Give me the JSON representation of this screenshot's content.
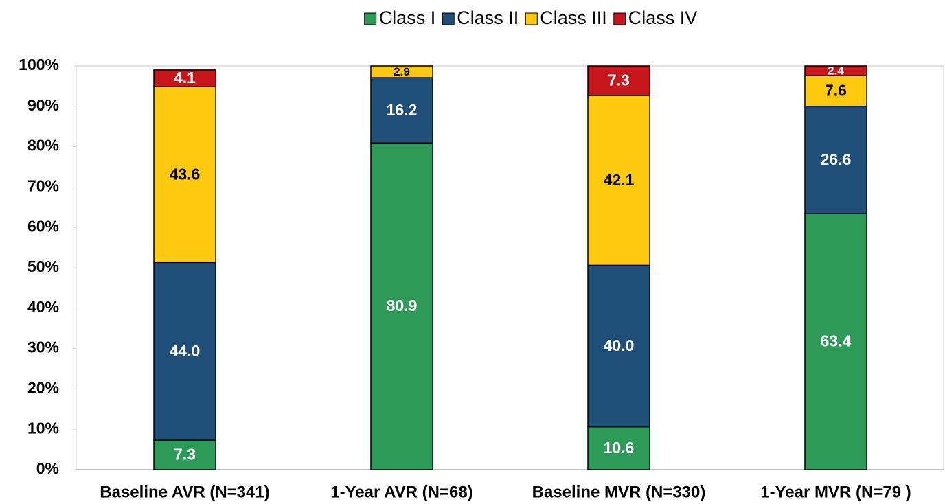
{
  "chart_data": {
    "type": "stacked_bar",
    "categories": [
      "Baseline AVR (N=341)",
      "1-Year AVR (N=68)",
      "Baseline MVR (N=330)",
      "1-Year MVR (N=79 )"
    ],
    "series": [
      {
        "name": "Class I",
        "color": "#2e9a58",
        "values": [
          7.3,
          80.9,
          10.6,
          63.4
        ],
        "value_labels": [
          "7.3",
          "80.9",
          "10.6",
          "63.4"
        ]
      },
      {
        "name": "Class II",
        "color": "#1f4e79",
        "values": [
          44.0,
          16.2,
          40.0,
          26.6
        ],
        "value_labels": [
          "44.0",
          "16.2",
          "40.0",
          "26.6"
        ]
      },
      {
        "name": "Class III",
        "color": "#ffc90e",
        "values": [
          43.6,
          2.9,
          42.1,
          7.6
        ],
        "value_labels": [
          "43.6",
          "2.9",
          "42.1",
          "7.6"
        ]
      },
      {
        "name": "Class IV",
        "color": "#c8161d",
        "values": [
          4.1,
          null,
          7.3,
          2.4
        ],
        "value_labels": [
          "4.1",
          null,
          "7.3",
          "2.4"
        ]
      }
    ],
    "ylim": [
      0,
      100
    ],
    "yticks": [
      {
        "value": 0,
        "label": "0%"
      },
      {
        "value": 10,
        "label": "10%"
      },
      {
        "value": 20,
        "label": "20%"
      },
      {
        "value": 30,
        "label": "30%"
      },
      {
        "value": 40,
        "label": "40%"
      },
      {
        "value": 50,
        "label": "50%"
      },
      {
        "value": 60,
        "label": "60%"
      },
      {
        "value": 70,
        "label": "70%"
      },
      {
        "value": 80,
        "label": "80%"
      },
      {
        "value": 90,
        "label": "90%"
      },
      {
        "value": 100,
        "label": "100%"
      }
    ],
    "legend": "top"
  }
}
